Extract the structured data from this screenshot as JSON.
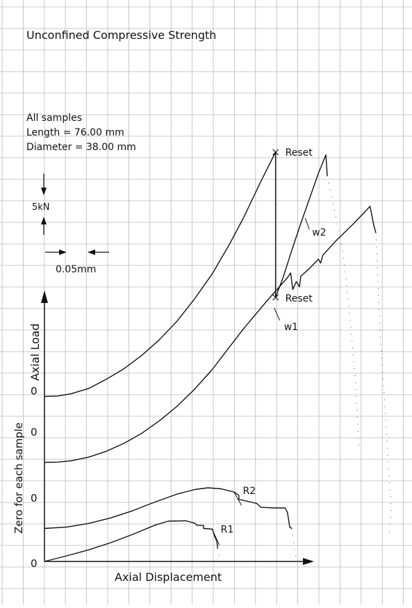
{
  "chart_data": {
    "type": "line",
    "title": "Unconfined Compressive Strength",
    "note_lines": [
      "All samples",
      "Length = 76.00 mm",
      "Diameter = 38.00 mm"
    ],
    "xlabel": "Axial Displacement",
    "ylabel": "Axial Load",
    "ylabel_secondary": "Zero for each sample",
    "scale_load_label": "5kN",
    "scale_disp_label": "0.05mm",
    "zero_labels": [
      "0",
      "0",
      "0",
      "0"
    ],
    "grid": true,
    "colors": {
      "curve": "#111111",
      "grid": "#b8b8b8",
      "background": "#ffffff"
    },
    "series": [
      {
        "name": "w2",
        "zero_kN": 12.5,
        "points": [
          [
            0,
            12.5
          ],
          [
            0.03,
            12.53
          ],
          [
            0.06,
            12.7
          ],
          [
            0.1,
            13.1
          ],
          [
            0.14,
            13.8
          ],
          [
            0.18,
            14.6
          ],
          [
            0.22,
            15.6
          ],
          [
            0.26,
            16.8
          ],
          [
            0.3,
            18.2
          ],
          [
            0.34,
            19.9
          ],
          [
            0.38,
            21.8
          ],
          [
            0.42,
            24.1
          ],
          [
            0.45,
            26.0
          ],
          [
            0.49,
            28.8
          ],
          [
            0.523,
            31.0
          ]
        ],
        "reloads": [
          [
            [
              0.523,
              31.0
            ],
            [
              0.523,
              20.0
            ]
          ],
          [
            [
              0.523,
              20.0
            ],
            [
              0.54,
              21.5
            ],
            [
              0.56,
              23.6
            ],
            [
              0.58,
              25.6
            ],
            [
              0.6,
              27.5
            ],
            [
              0.62,
              29.4
            ],
            [
              0.637,
              30.8
            ],
            [
              0.64,
              29.2
            ]
          ]
        ],
        "tail": [
          [
            0.64,
            29.2
          ],
          [
            0.66,
            26.0
          ],
          [
            0.677,
            23.0
          ],
          [
            0.69,
            19.0
          ],
          [
            0.703,
            14.0
          ],
          [
            0.712,
            8.5
          ]
        ]
      },
      {
        "name": "w1",
        "zero_kN": 7.5,
        "points": [
          [
            0,
            7.5
          ],
          [
            0.03,
            7.52
          ],
          [
            0.06,
            7.62
          ],
          [
            0.1,
            7.9
          ],
          [
            0.14,
            8.35
          ],
          [
            0.18,
            8.95
          ],
          [
            0.22,
            9.7
          ],
          [
            0.26,
            10.65
          ],
          [
            0.3,
            11.75
          ],
          [
            0.34,
            13.05
          ],
          [
            0.38,
            14.55
          ],
          [
            0.42,
            16.3
          ],
          [
            0.45,
            17.6
          ],
          [
            0.5,
            19.6
          ],
          [
            0.55,
            21.5
          ]
        ],
        "step_drops": [
          [
            0.557,
            21.85
          ],
          [
            0.562,
            20.6
          ],
          [
            0.57,
            21.2
          ],
          [
            0.577,
            20.8
          ],
          [
            0.58,
            21.6
          ],
          [
            0.6,
            22.2
          ],
          [
            0.62,
            22.9
          ],
          [
            0.625,
            22.6
          ],
          [
            0.63,
            23.2
          ],
          [
            0.66,
            24.3
          ],
          [
            0.7,
            25.6
          ],
          [
            0.737,
            26.9
          ],
          [
            0.745,
            25.5
          ],
          [
            0.75,
            24.9
          ]
        ],
        "tail": [
          [
            0.75,
            24.9
          ],
          [
            0.755,
            21.0
          ],
          [
            0.76,
            17.0
          ],
          [
            0.77,
            12.0
          ],
          [
            0.78,
            6.5
          ],
          [
            0.785,
            4.0
          ],
          [
            0.78,
            2.0
          ]
        ]
      },
      {
        "name": "R2",
        "zero_kN": 2.5,
        "points": [
          [
            0,
            2.5
          ],
          [
            0.05,
            2.6
          ],
          [
            0.1,
            2.88
          ],
          [
            0.15,
            3.3
          ],
          [
            0.2,
            3.85
          ],
          [
            0.25,
            4.5
          ],
          [
            0.3,
            5.1
          ],
          [
            0.34,
            5.45
          ],
          [
            0.37,
            5.58
          ],
          [
            0.4,
            5.5
          ],
          [
            0.43,
            5.25
          ]
        ],
        "step_drops": [
          [
            0.44,
            5.0
          ],
          [
            0.44,
            4.7
          ],
          [
            0.46,
            4.55
          ],
          [
            0.48,
            4.4
          ],
          [
            0.49,
            4.1
          ],
          [
            0.52,
            4.05
          ],
          [
            0.545,
            4.05
          ],
          [
            0.55,
            3.7
          ],
          [
            0.555,
            2.6
          ],
          [
            0.56,
            2.5
          ]
        ],
        "tail": [
          [
            0.56,
            2.5
          ],
          [
            0.565,
            1.0
          ],
          [
            0.57,
            0.2
          ]
        ]
      },
      {
        "name": "R1",
        "zero_kN": 0,
        "points": [
          [
            0,
            0
          ],
          [
            0.05,
            0.42
          ],
          [
            0.1,
            0.88
          ],
          [
            0.15,
            1.42
          ],
          [
            0.2,
            2.05
          ],
          [
            0.25,
            2.75
          ],
          [
            0.28,
            3.05
          ],
          [
            0.32,
            3.08
          ]
        ],
        "step_drops": [
          [
            0.34,
            2.9
          ],
          [
            0.345,
            2.75
          ],
          [
            0.36,
            2.72
          ],
          [
            0.36,
            2.5
          ],
          [
            0.38,
            2.45
          ],
          [
            0.385,
            1.9
          ],
          [
            0.39,
            1.55
          ],
          [
            0.392,
            1.0
          ]
        ],
        "tail": [
          [
            0.392,
            1.0
          ],
          [
            0.396,
            0.3
          ]
        ]
      }
    ],
    "annotations": [
      {
        "text": "Reset",
        "x": 0.523,
        "y": 31.0
      },
      {
        "text": "Reset",
        "x": 0.523,
        "y": 20.0
      },
      {
        "text": "w2",
        "x": 0.59,
        "y": 26.0
      },
      {
        "text": "w1",
        "x": 0.52,
        "y": 19.2
      },
      {
        "text": "R2",
        "x": 0.43,
        "y": 5.2
      },
      {
        "text": "R1",
        "x": 0.38,
        "y": 2.4
      }
    ],
    "xlim": [
      -0.08,
      0.66
    ],
    "ylim": [
      -3.0,
      42.0
    ]
  }
}
